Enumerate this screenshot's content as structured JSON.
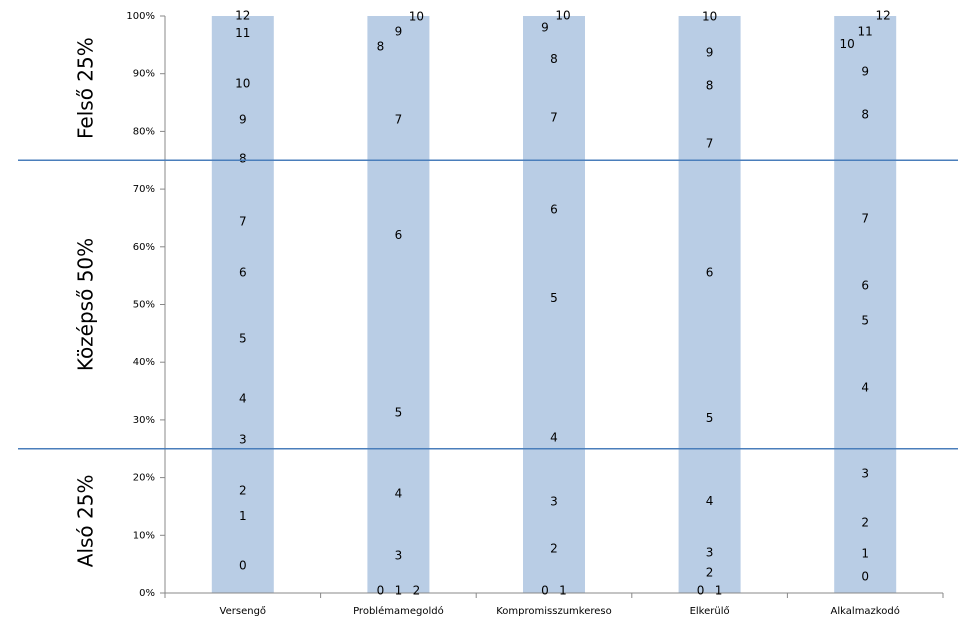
{
  "chart_data": {
    "type": "bar",
    "categories": [
      "Versengő",
      "Problémamegoldó",
      "Kompromisszumkereso",
      "Elkerülő",
      "Alkalmazkodó"
    ],
    "values": [
      100,
      100,
      100,
      100,
      100
    ],
    "color": "#b9cde5",
    "ylim": [
      0,
      100
    ],
    "yticks": [
      {
        "value": 0,
        "label": "0%"
      },
      {
        "value": 10,
        "label": "10%"
      },
      {
        "value": 20,
        "label": "20%"
      },
      {
        "value": 30,
        "label": "30%"
      },
      {
        "value": 40,
        "label": "40%"
      },
      {
        "value": 50,
        "label": "50%"
      },
      {
        "value": 60,
        "label": "60%"
      },
      {
        "value": 70,
        "label": "70%"
      },
      {
        "value": 80,
        "label": "80%"
      },
      {
        "value": 90,
        "label": "90%"
      },
      {
        "value": 100,
        "label": "100%"
      }
    ],
    "grid": false,
    "reference_lines": [
      25,
      75
    ],
    "reference_color": "#4a7ebb",
    "band_labels": [
      "Alsó 25%",
      "Középső 50%",
      "Felső 25%"
    ],
    "scores": [
      {
        "scores": [
          0,
          1,
          2,
          3,
          4,
          5,
          6,
          7,
          8,
          9,
          10,
          11,
          12
        ],
        "percentiles": [
          4.7,
          13.3,
          17.7,
          26.5,
          33.6,
          44,
          55.5,
          64.3,
          75.2,
          82,
          88.2,
          97,
          100
        ]
      },
      {
        "scores": [
          0,
          1,
          2,
          3,
          4,
          5,
          6,
          7,
          8,
          9,
          10
        ],
        "percentiles": [
          0.3,
          0.3,
          0.3,
          6.4,
          17.2,
          31.2,
          62,
          82,
          94.6,
          97.2,
          99.8
        ]
      },
      {
        "scores": [
          0,
          1,
          2,
          3,
          4,
          5,
          6,
          7,
          8,
          9,
          10
        ],
        "percentiles": [
          0.3,
          0.3,
          7.6,
          15.8,
          26.9,
          51,
          66.4,
          82.3,
          92.5,
          97.9,
          100
        ]
      },
      {
        "scores": [
          0,
          1,
          2,
          3,
          4,
          5,
          6,
          7,
          8,
          9,
          10
        ],
        "percentiles": [
          0.3,
          0.3,
          3.5,
          6.9,
          15.9,
          30.2,
          55.5,
          77.8,
          87.9,
          93.6,
          99.8
        ]
      },
      {
        "scores": [
          0,
          1,
          2,
          3,
          4,
          5,
          6,
          7,
          8,
          9,
          10,
          11,
          12
        ],
        "percentiles": [
          2.8,
          6.8,
          12.1,
          20.6,
          35.5,
          47.1,
          53.2,
          64.8,
          82.8,
          90.3,
          95.1,
          97.2,
          100
        ]
      }
    ]
  }
}
